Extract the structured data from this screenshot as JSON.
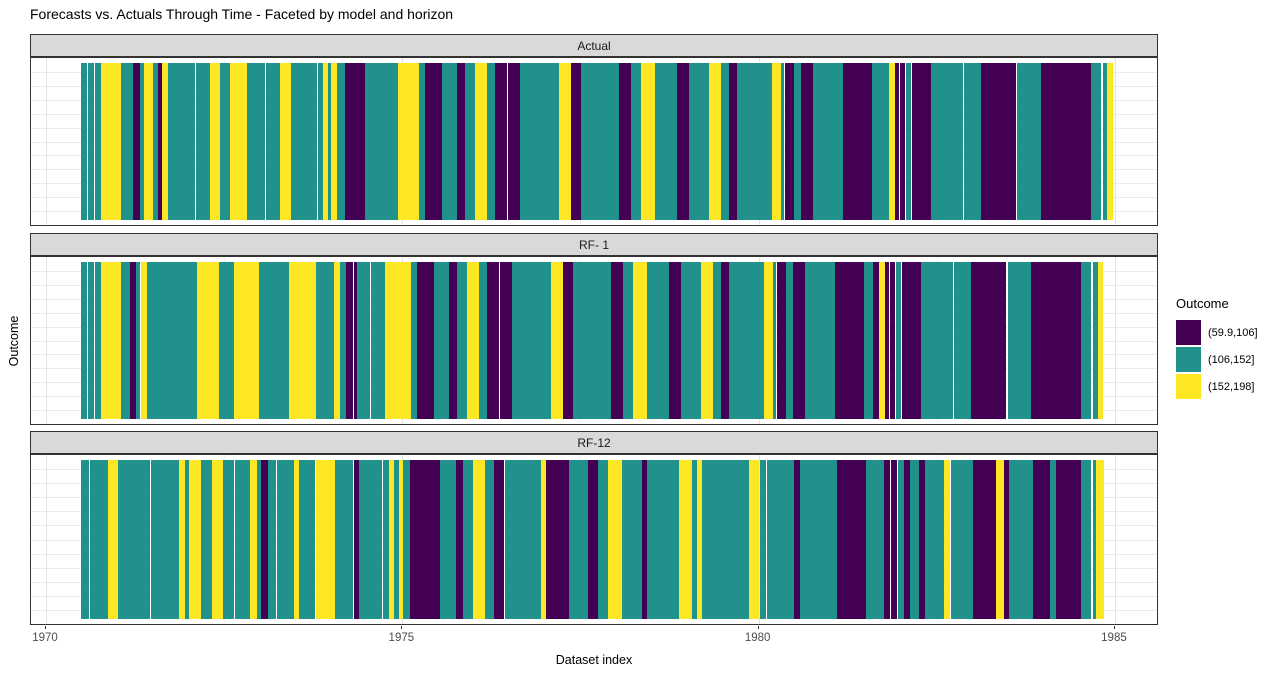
{
  "chart_data": {
    "type": "heatmap",
    "subtype": "faceted-tile-strip",
    "title": "Forecasts vs. Actuals Through Time - Faceted by model and horizon",
    "xlabel": "Dataset index",
    "ylabel": "Outcome",
    "grid": "on",
    "x_axis": {
      "domain": [
        1969.789,
        1985.618
      ],
      "ticks": [
        1970,
        1975,
        1980,
        1985
      ],
      "minor_ticks": [
        1972.5,
        1977.5,
        1982.5
      ]
    },
    "tiles_start_year": 1970.49,
    "legend": {
      "title": "Outcome",
      "position": "right",
      "entries": [
        {
          "key": "p",
          "label": "(59.9,106]",
          "color": "#440154"
        },
        {
          "key": "t",
          "label": "(106,152]",
          "color": "#21918c"
        },
        {
          "key": "y",
          "label": "(152,198]",
          "color": "#fde725"
        }
      ]
    },
    "gap_key": "w",
    "gap_color": "#ffffff",
    "facets": [
      {
        "label": "Actual",
        "runs": [
          [
            "t",
            1.0
          ],
          [
            "w",
            0.2
          ],
          [
            "t",
            1.0
          ],
          [
            "w",
            0.2
          ],
          [
            "t",
            1.0
          ],
          [
            "y",
            3.3
          ],
          [
            "t",
            2.0
          ],
          [
            "p",
            1.2
          ],
          [
            "t",
            0.8
          ],
          [
            "y",
            1.5
          ],
          [
            "t",
            0.7
          ],
          [
            "p",
            0.8
          ],
          [
            "y",
            0.9
          ],
          [
            "t",
            4.6
          ],
          [
            "w",
            0.15
          ],
          [
            "t",
            2.4
          ],
          [
            "y",
            1.7
          ],
          [
            "t",
            1.7
          ],
          [
            "y",
            2.8
          ],
          [
            "t",
            3.0
          ],
          [
            "w",
            0.15
          ],
          [
            "t",
            2.5
          ],
          [
            "y",
            1.7
          ],
          [
            "t",
            4.5
          ],
          [
            "w",
            0.15
          ],
          [
            "t",
            0.8
          ],
          [
            "y",
            0.8
          ],
          [
            "t",
            0.6
          ],
          [
            "y",
            0.9
          ],
          [
            "t",
            1.4
          ],
          [
            "p",
            2.3
          ],
          [
            "w",
            0.15
          ],
          [
            "p",
            1.0
          ],
          [
            "t",
            3.4
          ],
          [
            "w",
            0.15
          ],
          [
            "t",
            2.0
          ],
          [
            "y",
            3.4
          ],
          [
            "w",
            0.15
          ],
          [
            "t",
            0.9
          ],
          [
            "p",
            2.9
          ],
          [
            "t",
            2.6
          ],
          [
            "p",
            1.3
          ],
          [
            "t",
            1.7
          ],
          [
            "y",
            2.0
          ],
          [
            "t",
            1.4
          ],
          [
            "p",
            1.9
          ],
          [
            "w",
            0.15
          ],
          [
            "p",
            2.1
          ],
          [
            "t",
            6.5
          ],
          [
            "y",
            2.0
          ],
          [
            "p",
            1.7
          ],
          [
            "t",
            6.5
          ],
          [
            "p",
            2.0
          ],
          [
            "t",
            1.7
          ],
          [
            "y",
            2.3
          ],
          [
            "t",
            3.7
          ],
          [
            "p",
            2.0
          ],
          [
            "t",
            3.4
          ],
          [
            "y",
            2.0
          ],
          [
            "t",
            1.4
          ],
          [
            "p",
            1.4
          ],
          [
            "t",
            5.9
          ],
          [
            "y",
            1.4
          ],
          [
            "t",
            0.5
          ],
          [
            "w",
            0.15
          ],
          [
            "p",
            1.6
          ],
          [
            "t",
            1.1
          ],
          [
            "p",
            2.1
          ],
          [
            "t",
            5.1
          ],
          [
            "p",
            4.8
          ],
          [
            "t",
            2.8
          ],
          [
            "y",
            1.1
          ],
          [
            "p",
            0.7
          ],
          [
            "w",
            0.15
          ],
          [
            "p",
            0.8
          ],
          [
            "w",
            0.15
          ],
          [
            "t",
            0.9
          ],
          [
            "w",
            0.15
          ],
          [
            "p",
            3.2
          ],
          [
            "t",
            5.4
          ],
          [
            "w",
            0.15
          ],
          [
            "t",
            2.8
          ],
          [
            "p",
            5.9
          ],
          [
            "w",
            0.3
          ],
          [
            "t",
            3.9
          ],
          [
            "p",
            8.5
          ],
          [
            "t",
            1.7
          ],
          [
            "w",
            0.25
          ],
          [
            "t",
            0.8
          ],
          [
            "y",
            0.9
          ]
        ]
      },
      {
        "label": "RF- 1",
        "runs": [
          [
            "t",
            1.0
          ],
          [
            "w",
            0.2
          ],
          [
            "t",
            1.0
          ],
          [
            "w",
            0.2
          ],
          [
            "t",
            1.0
          ],
          [
            "y",
            3.3
          ],
          [
            "t",
            1.5
          ],
          [
            "p",
            1.1
          ],
          [
            "t",
            0.7
          ],
          [
            "w",
            0.15
          ],
          [
            "y",
            0.9
          ],
          [
            "t",
            8.5
          ],
          [
            "y",
            3.7
          ],
          [
            "t",
            2.5
          ],
          [
            "y",
            4.2
          ],
          [
            "t",
            5.1
          ],
          [
            "y",
            4.5
          ],
          [
            "t",
            3.1
          ],
          [
            "y",
            0.9
          ],
          [
            "t",
            1.1
          ],
          [
            "p",
            1.1
          ],
          [
            "w",
            0.15
          ],
          [
            "p",
            0.6
          ],
          [
            "t",
            2.2
          ],
          [
            "w",
            0.15
          ],
          [
            "t",
            2.3
          ],
          [
            "y",
            4.4
          ],
          [
            "t",
            1.0
          ],
          [
            "p",
            2.9
          ],
          [
            "t",
            2.6
          ],
          [
            "p",
            1.3
          ],
          [
            "t",
            1.7
          ],
          [
            "y",
            2.0
          ],
          [
            "t",
            1.4
          ],
          [
            "p",
            1.9
          ],
          [
            "w",
            0.15
          ],
          [
            "p",
            2.1
          ],
          [
            "t",
            6.5
          ],
          [
            "y",
            2.0
          ],
          [
            "p",
            1.7
          ],
          [
            "t",
            6.5
          ],
          [
            "p",
            2.0
          ],
          [
            "t",
            1.7
          ],
          [
            "y",
            2.3
          ],
          [
            "t",
            3.7
          ],
          [
            "p",
            2.0
          ],
          [
            "t",
            3.4
          ],
          [
            "y",
            2.0
          ],
          [
            "t",
            1.4
          ],
          [
            "p",
            1.4
          ],
          [
            "t",
            5.9
          ],
          [
            "y",
            1.4
          ],
          [
            "t",
            0.5
          ],
          [
            "w",
            0.15
          ],
          [
            "p",
            1.6
          ],
          [
            "t",
            1.1
          ],
          [
            "p",
            2.1
          ],
          [
            "t",
            5.1
          ],
          [
            "p",
            4.8
          ],
          [
            "t",
            1.6
          ],
          [
            "p",
            1.0
          ],
          [
            "y",
            1.0
          ],
          [
            "p",
            0.7
          ],
          [
            "w",
            0.15
          ],
          [
            "p",
            0.8
          ],
          [
            "w",
            0.15
          ],
          [
            "t",
            0.9
          ],
          [
            "w",
            0.15
          ],
          [
            "p",
            3.2
          ],
          [
            "t",
            5.4
          ],
          [
            "w",
            0.15
          ],
          [
            "t",
            2.8
          ],
          [
            "p",
            5.9
          ],
          [
            "w",
            0.3
          ],
          [
            "t",
            3.9
          ],
          [
            "p",
            8.5
          ],
          [
            "t",
            1.7
          ],
          [
            "w",
            0.25
          ],
          [
            "t",
            0.8
          ],
          [
            "y",
            0.9
          ]
        ]
      },
      {
        "label": "RF-12",
        "runs": [
          [
            "t",
            1.3
          ],
          [
            "w",
            0.2
          ],
          [
            "t",
            3.0
          ],
          [
            "y",
            1.8
          ],
          [
            "t",
            5.3
          ],
          [
            "w",
            0.15
          ],
          [
            "t",
            4.7
          ],
          [
            "y",
            1.0
          ],
          [
            "t",
            0.7
          ],
          [
            "y",
            2.0
          ],
          [
            "t",
            2.0
          ],
          [
            "y",
            1.7
          ],
          [
            "t",
            2.0
          ],
          [
            "w",
            0.15
          ],
          [
            "t",
            2.5
          ],
          [
            "y",
            1.1
          ],
          [
            "t",
            0.8
          ],
          [
            "p",
            1.1
          ],
          [
            "t",
            1.4
          ],
          [
            "w",
            0.15
          ],
          [
            "t",
            2.8
          ],
          [
            "y",
            0.8
          ],
          [
            "t",
            2.8
          ],
          [
            "w",
            0.15
          ],
          [
            "y",
            3.1
          ],
          [
            "t",
            3.1
          ],
          [
            "w",
            0.15
          ],
          [
            "p",
            0.8
          ],
          [
            "t",
            3.9
          ],
          [
            "w",
            0.15
          ],
          [
            "t",
            1.1
          ],
          [
            "y",
            0.8
          ],
          [
            "t",
            0.8
          ],
          [
            "y",
            0.8
          ],
          [
            "t",
            1.1
          ],
          [
            "p",
            5.1
          ],
          [
            "t",
            2.6
          ],
          [
            "p",
            1.3
          ],
          [
            "t",
            1.7
          ],
          [
            "y",
            2.0
          ],
          [
            "t",
            1.4
          ],
          [
            "p",
            1.7
          ],
          [
            "w",
            0.15
          ],
          [
            "t",
            6.2
          ],
          [
            "y",
            0.8
          ],
          [
            "p",
            3.9
          ],
          [
            "t",
            3.1
          ],
          [
            "p",
            1.7
          ],
          [
            "t",
            1.7
          ],
          [
            "y",
            2.3
          ],
          [
            "t",
            3.4
          ],
          [
            "p",
            0.8
          ],
          [
            "t",
            5.4
          ],
          [
            "y",
            2.3
          ],
          [
            "t",
            0.8
          ],
          [
            "y",
            0.8
          ],
          [
            "t",
            7.9
          ],
          [
            "y",
            1.7
          ],
          [
            "w",
            0.15
          ],
          [
            "t",
            1.1
          ],
          [
            "w",
            0.15
          ],
          [
            "t",
            4.6
          ],
          [
            "p",
            0.9
          ],
          [
            "t",
            6.3
          ],
          [
            "p",
            4.8
          ],
          [
            "t",
            3.1
          ],
          [
            "p",
            1.0
          ],
          [
            "w",
            0.15
          ],
          [
            "p",
            1.1
          ],
          [
            "w",
            0.15
          ],
          [
            "t",
            0.9
          ],
          [
            "p",
            1.1
          ],
          [
            "t",
            1.4
          ],
          [
            "p",
            1.1
          ],
          [
            "t",
            3.1
          ],
          [
            "y",
            1.1
          ],
          [
            "w",
            0.15
          ],
          [
            "t",
            3.7
          ],
          [
            "p",
            3.9
          ],
          [
            "y",
            1.3
          ],
          [
            "p",
            0.8
          ],
          [
            "w",
            0.15
          ],
          [
            "t",
            3.9
          ],
          [
            "p",
            2.9
          ],
          [
            "t",
            1.1
          ],
          [
            "p",
            4.2
          ],
          [
            "t",
            1.7
          ],
          [
            "w",
            0.25
          ],
          [
            "t",
            0.6
          ],
          [
            "y",
            1.2
          ]
        ]
      }
    ]
  }
}
